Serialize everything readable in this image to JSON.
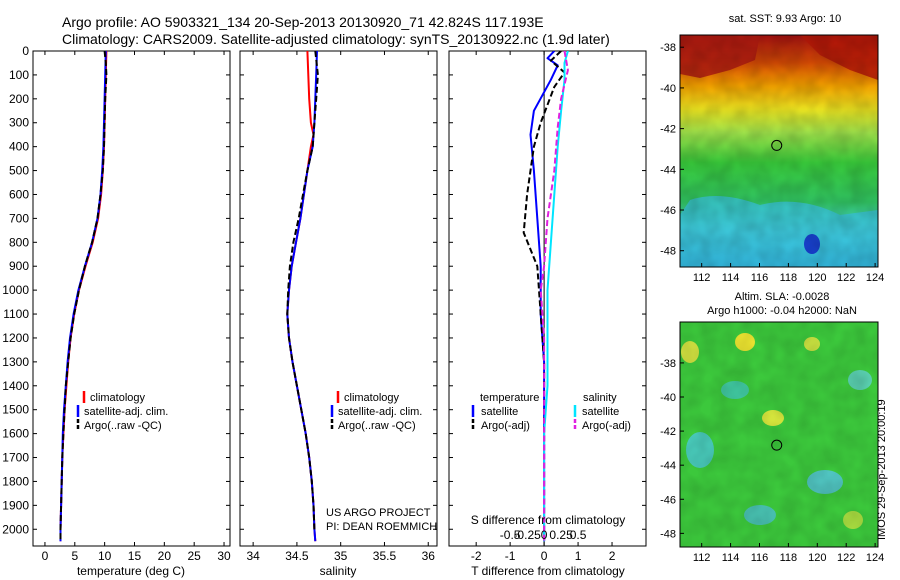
{
  "header": {
    "line1": "Argo profile: AO 5903321_134 20-Sep-2013 20130920_71 42.824S 117.193E",
    "line2": "Climatology: CARS2009. Satellite-adjusted climatology: synTS_20130922.nc (1.9d later)"
  },
  "stamp": "IMOS 29-Sep-2013 20:00:19",
  "project": {
    "line1": "US ARGO PROJECT",
    "line2": "PI: DEAN ROEMMICH"
  },
  "colors": {
    "red": "#ff0000",
    "blue": "#0000ff",
    "black": "#000000",
    "cyan": "#00e5ff",
    "magenta": "#e020e0"
  },
  "chart_data": [
    {
      "type": "line",
      "xlabel": "temperature (deg C)",
      "ylabel": "",
      "xlim": [
        -2,
        31
      ],
      "ylim": [
        2070,
        0
      ],
      "x_ticks": [
        0,
        5,
        10,
        15,
        20,
        25,
        30
      ],
      "y_ticks": [
        0,
        100,
        200,
        300,
        400,
        500,
        600,
        700,
        800,
        900,
        1000,
        1100,
        1200,
        1300,
        1400,
        1500,
        1600,
        1700,
        1800,
        1900,
        2000
      ],
      "grid": false,
      "legend_position": "lower-center",
      "series": [
        {
          "name": "climatology",
          "color": "red",
          "dash": false,
          "points": [
            [
              10.3,
              0
            ],
            [
              10.2,
              100
            ],
            [
              10.1,
              200
            ],
            [
              10.0,
              300
            ],
            [
              9.9,
              400
            ],
            [
              9.7,
              500
            ],
            [
              9.4,
              600
            ],
            [
              8.9,
              700
            ],
            [
              8.0,
              800
            ],
            [
              6.8,
              900
            ],
            [
              5.7,
              1000
            ],
            [
              4.9,
              1100
            ],
            [
              4.3,
              1200
            ],
            [
              3.9,
              1300
            ],
            [
              3.6,
              1400
            ],
            [
              3.3,
              1500
            ],
            [
              3.1,
              1600
            ],
            [
              2.9,
              1700
            ],
            [
              2.8,
              1800
            ],
            [
              2.7,
              1900
            ],
            [
              2.6,
              2000
            ],
            [
              2.6,
              2050
            ]
          ]
        },
        {
          "name": "satellite-adj. clim.",
          "color": "blue",
          "dash": false,
          "points": [
            [
              10.2,
              0
            ],
            [
              10.1,
              100
            ],
            [
              10.0,
              200
            ],
            [
              9.9,
              300
            ],
            [
              9.8,
              400
            ],
            [
              9.6,
              500
            ],
            [
              9.3,
              600
            ],
            [
              8.8,
              700
            ],
            [
              7.9,
              800
            ],
            [
              6.7,
              900
            ],
            [
              5.6,
              1000
            ],
            [
              4.8,
              1100
            ],
            [
              4.2,
              1200
            ],
            [
              3.8,
              1300
            ],
            [
              3.5,
              1400
            ],
            [
              3.2,
              1500
            ],
            [
              3.0,
              1600
            ],
            [
              2.9,
              1700
            ],
            [
              2.8,
              1800
            ],
            [
              2.7,
              1900
            ],
            [
              2.6,
              2000
            ],
            [
              2.6,
              2050
            ]
          ]
        },
        {
          "name": "Argo(..raw -QC)",
          "color": "black",
          "dash": true,
          "points": [
            [
              10.0,
              0
            ],
            [
              10.2,
              50
            ],
            [
              10.3,
              100
            ],
            [
              10.1,
              200
            ],
            [
              10.0,
              300
            ],
            [
              9.9,
              400
            ],
            [
              9.7,
              500
            ],
            [
              9.3,
              600
            ],
            [
              8.8,
              700
            ],
            [
              7.9,
              800
            ],
            [
              6.7,
              900
            ],
            [
              5.7,
              1000
            ],
            [
              4.9,
              1100
            ],
            [
              4.3,
              1200
            ],
            [
              3.9,
              1300
            ],
            [
              3.5,
              1400
            ],
            [
              3.3,
              1500
            ],
            [
              3.1,
              1600
            ],
            [
              2.9,
              1700
            ],
            [
              2.8,
              1800
            ],
            [
              2.7,
              1900
            ],
            [
              2.6,
              2000
            ],
            [
              2.6,
              2050
            ]
          ]
        }
      ]
    },
    {
      "type": "line",
      "xlabel": "salinity",
      "ylabel": "",
      "xlim": [
        33.85,
        36.1
      ],
      "ylim": [
        2070,
        0
      ],
      "x_ticks": [
        34,
        34.5,
        35,
        35.5,
        36
      ],
      "x_tick_labels": [
        "34",
        "34.5",
        "35",
        "35.5",
        "36"
      ],
      "grid": false,
      "legend_position": "lower-center",
      "series": [
        {
          "name": "climatology",
          "color": "red",
          "dash": false,
          "points": [
            [
              34.62,
              0
            ],
            [
              34.63,
              100
            ],
            [
              34.64,
              200
            ],
            [
              34.66,
              300
            ],
            [
              34.69,
              350
            ],
            [
              34.66,
              400
            ],
            [
              34.62,
              500
            ],
            [
              34.58,
              600
            ],
            [
              34.54,
              700
            ],
            [
              34.49,
              800
            ],
            [
              34.44,
              900
            ],
            [
              34.41,
              1000
            ],
            [
              34.39,
              1100
            ],
            [
              34.41,
              1200
            ],
            [
              34.45,
              1300
            ],
            [
              34.5,
              1400
            ],
            [
              34.55,
              1500
            ],
            [
              34.6,
              1600
            ],
            [
              34.64,
              1700
            ],
            [
              34.67,
              1800
            ],
            [
              34.69,
              1900
            ],
            [
              34.7,
              2000
            ],
            [
              34.71,
              2050
            ]
          ]
        },
        {
          "name": "satellite-adj. clim.",
          "color": "blue",
          "dash": false,
          "points": [
            [
              34.73,
              0
            ],
            [
              34.72,
              100
            ],
            [
              34.71,
              200
            ],
            [
              34.7,
              300
            ],
            [
              34.68,
              400
            ],
            [
              34.62,
              500
            ],
            [
              34.58,
              600
            ],
            [
              34.54,
              700
            ],
            [
              34.49,
              800
            ],
            [
              34.44,
              900
            ],
            [
              34.41,
              1000
            ],
            [
              34.39,
              1100
            ],
            [
              34.41,
              1200
            ],
            [
              34.45,
              1300
            ],
            [
              34.5,
              1400
            ],
            [
              34.55,
              1500
            ],
            [
              34.6,
              1600
            ],
            [
              34.64,
              1700
            ],
            [
              34.67,
              1800
            ],
            [
              34.69,
              1900
            ],
            [
              34.7,
              2000
            ],
            [
              34.71,
              2050
            ]
          ]
        },
        {
          "name": "Argo(..raw -QC)",
          "color": "black",
          "dash": true,
          "points": [
            [
              34.71,
              0
            ],
            [
              34.74,
              100
            ],
            [
              34.72,
              200
            ],
            [
              34.7,
              300
            ],
            [
              34.68,
              400
            ],
            [
              34.62,
              500
            ],
            [
              34.57,
              600
            ],
            [
              34.52,
              700
            ],
            [
              34.46,
              800
            ],
            [
              34.42,
              900
            ],
            [
              34.4,
              1000
            ],
            [
              34.39,
              1100
            ],
            [
              34.41,
              1200
            ],
            [
              34.45,
              1300
            ],
            [
              34.5,
              1400
            ],
            [
              34.55,
              1500
            ],
            [
              34.6,
              1600
            ],
            [
              34.64,
              1700
            ],
            [
              34.67,
              1800
            ],
            [
              34.69,
              1900
            ],
            [
              34.7,
              2000
            ]
          ]
        }
      ]
    },
    {
      "type": "line",
      "xlabel": "T difference from climatology",
      "ylabel": "",
      "xlim": [
        -2.8,
        3.0
      ],
      "ylim": [
        2070,
        0
      ],
      "x_ticks": [
        -2,
        -1,
        0,
        1,
        2
      ],
      "secondary_axis_label": "S difference from climatology",
      "secondary_x_ticks": [
        -0.5,
        -0.25,
        0,
        0.25,
        0.5
      ],
      "secondary_x_tick_labels": [
        "-0.5",
        "-0.25",
        "0",
        "0.25",
        "0.5"
      ],
      "zero_line": true,
      "legend_groups": [
        "temperature",
        "salinity"
      ],
      "legend_position": "lower-center",
      "series": [
        {
          "name": "satellite",
          "group": "temperature",
          "color": "blue",
          "dash": false,
          "points": [
            [
              0.3,
              0
            ],
            [
              0.1,
              30
            ],
            [
              0.4,
              60
            ],
            [
              0.2,
              120
            ],
            [
              -0.3,
              250
            ],
            [
              -0.4,
              350
            ],
            [
              -0.3,
              500
            ],
            [
              -0.2,
              700
            ],
            [
              -0.1,
              900
            ],
            [
              -0.1,
              1100
            ],
            [
              0.0,
              1300
            ],
            [
              0.0,
              1500
            ],
            [
              0.0,
              1800
            ],
            [
              0.0,
              2050
            ]
          ]
        },
        {
          "name": "Argo(-adj)",
          "group": "temperature",
          "color": "black",
          "dash": true,
          "points": [
            [
              0.5,
              0
            ],
            [
              0.2,
              40
            ],
            [
              0.6,
              90
            ],
            [
              0.3,
              150
            ],
            [
              -0.1,
              300
            ],
            [
              -0.3,
              400
            ],
            [
              -0.5,
              600
            ],
            [
              -0.6,
              760
            ],
            [
              -0.2,
              900
            ],
            [
              -0.1,
              1100
            ],
            [
              0.0,
              1300
            ],
            [
              0.0,
              1500
            ],
            [
              0.0,
              1800
            ],
            [
              0.0,
              2050
            ]
          ]
        },
        {
          "name": "satellite",
          "group": "salinity",
          "color": "cyan",
          "dash": false,
          "points": [
            [
              0.7,
              0
            ],
            [
              0.6,
              50
            ],
            [
              0.6,
              120
            ],
            [
              0.5,
              250
            ],
            [
              0.4,
              400
            ],
            [
              0.3,
              600
            ],
            [
              0.2,
              800
            ],
            [
              0.1,
              1000
            ],
            [
              0.1,
              1200
            ],
            [
              0.1,
              1400
            ],
            [
              0.0,
              1600
            ],
            [
              0.0,
              1800
            ],
            [
              0.0,
              2050
            ]
          ]
        },
        {
          "name": "Argo(-adj)",
          "group": "salinity",
          "color": "magenta",
          "dash": true,
          "points": [
            [
              0.6,
              0
            ],
            [
              0.7,
              80
            ],
            [
              0.5,
              200
            ],
            [
              0.4,
              320
            ],
            [
              0.3,
              500
            ],
            [
              0.1,
              700
            ],
            [
              0.0,
              900
            ],
            [
              -0.1,
              1000
            ],
            [
              0.0,
              1200
            ],
            [
              0.0,
              1400
            ],
            [
              0.0,
              1600
            ],
            [
              0.0,
              1800
            ],
            [
              0.0,
              2050
            ]
          ]
        }
      ]
    },
    {
      "type": "heatmap",
      "title": "sat. SST: 9.93 Argo: 10",
      "xlim": [
        110.5,
        124.2
      ],
      "ylim": [
        -48.8,
        -37.4
      ],
      "x_ticks": [
        112,
        114,
        116,
        118,
        120,
        122,
        124
      ],
      "y_ticks": [
        -38,
        -40,
        -42,
        -44,
        -46,
        -48
      ],
      "marker": {
        "lon": 117.193,
        "lat": -42.824
      }
    },
    {
      "type": "heatmap",
      "title_line1": "Altim. SLA: -0.0028",
      "title_line2": "Argo h1000: -0.04 h2000: NaN",
      "xlim": [
        110.5,
        124.2
      ],
      "ylim": [
        -48.8,
        -35.6
      ],
      "x_ticks": [
        112,
        114,
        116,
        118,
        120,
        122,
        124
      ],
      "y_ticks": [
        -38,
        -40,
        -42,
        -44,
        -46,
        -48
      ],
      "marker": {
        "lon": 117.193,
        "lat": -42.824
      }
    }
  ]
}
